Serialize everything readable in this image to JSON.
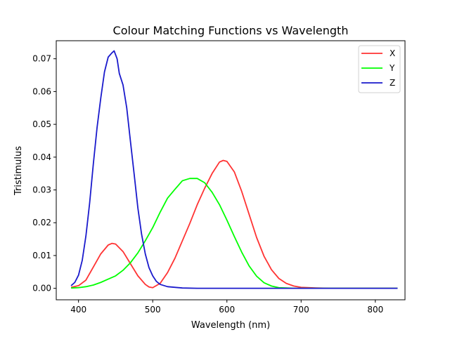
{
  "chart_data": {
    "type": "line",
    "title": "Colour Matching Functions vs Wavelength",
    "xlabel": "Wavelength (nm)",
    "ylabel": "Tristimulus",
    "xlim": [
      370,
      840
    ],
    "ylim": [
      -0.0035,
      0.0755
    ],
    "xticks": [
      400,
      500,
      600,
      700,
      800
    ],
    "yticks": [
      0.0,
      0.01,
      0.02,
      0.03,
      0.04,
      0.05,
      0.06,
      0.07
    ],
    "xtick_labels": [
      "400",
      "500",
      "600",
      "700",
      "800"
    ],
    "ytick_labels": [
      "0.00",
      "0.01",
      "0.02",
      "0.03",
      "0.04",
      "0.05",
      "0.06",
      "0.07"
    ],
    "grid": false,
    "legend_position": "top-right",
    "series": [
      {
        "name": "X",
        "color": "#ff3333",
        "x": [
          390,
          400,
          410,
          420,
          430,
          440,
          445,
          450,
          460,
          470,
          480,
          490,
          495,
          500,
          510,
          520,
          530,
          540,
          550,
          560,
          570,
          580,
          590,
          595,
          600,
          610,
          620,
          630,
          640,
          650,
          660,
          670,
          680,
          690,
          700,
          720,
          740,
          760,
          780,
          800,
          830
        ],
        "values": [
          0.0003,
          0.0008,
          0.0025,
          0.0065,
          0.0105,
          0.0132,
          0.0137,
          0.0135,
          0.0112,
          0.0075,
          0.0038,
          0.0012,
          0.0004,
          0.0002,
          0.0015,
          0.0048,
          0.0092,
          0.0145,
          0.0198,
          0.0255,
          0.0305,
          0.035,
          0.0385,
          0.039,
          0.0387,
          0.0355,
          0.0295,
          0.0225,
          0.0155,
          0.0098,
          0.0057,
          0.003,
          0.0015,
          0.0007,
          0.0003,
          0.0001,
          0.0,
          0.0,
          0.0,
          0.0,
          0.0
        ]
      },
      {
        "name": "Y",
        "color": "#00ff00",
        "x": [
          390,
          400,
          410,
          420,
          430,
          440,
          450,
          460,
          470,
          480,
          490,
          500,
          510,
          520,
          530,
          540,
          550,
          560,
          570,
          580,
          590,
          600,
          610,
          620,
          630,
          640,
          650,
          660,
          670,
          680,
          690,
          700,
          720,
          740,
          760,
          780,
          800,
          830
        ],
        "values": [
          0.0001,
          0.0002,
          0.0005,
          0.001,
          0.0018,
          0.0028,
          0.0038,
          0.0055,
          0.0078,
          0.0108,
          0.0145,
          0.0185,
          0.0232,
          0.0275,
          0.0302,
          0.0328,
          0.0335,
          0.0335,
          0.0322,
          0.0293,
          0.0255,
          0.0208,
          0.0158,
          0.011,
          0.0068,
          0.0037,
          0.0017,
          0.0007,
          0.0002,
          0.0001,
          0.0,
          0.0,
          0.0,
          0.0,
          0.0,
          0.0,
          0.0,
          0.0
        ]
      },
      {
        "name": "Z",
        "color": "#1a1acc",
        "x": [
          390,
          395,
          400,
          405,
          410,
          415,
          420,
          425,
          430,
          435,
          440,
          445,
          448,
          452,
          455,
          460,
          465,
          470,
          475,
          480,
          485,
          490,
          495,
          500,
          505,
          510,
          520,
          540,
          560,
          600,
          650,
          700,
          750,
          800,
          830
        ],
        "values": [
          0.0008,
          0.0018,
          0.004,
          0.0085,
          0.016,
          0.026,
          0.038,
          0.049,
          0.058,
          0.066,
          0.0705,
          0.0718,
          0.0724,
          0.07,
          0.0655,
          0.062,
          0.055,
          0.0448,
          0.0348,
          0.0245,
          0.0165,
          0.0105,
          0.0063,
          0.0038,
          0.0021,
          0.0012,
          0.0005,
          0.0001,
          0.0,
          0.0,
          0.0,
          0.0,
          0.0,
          0.0,
          0.0
        ]
      }
    ]
  }
}
